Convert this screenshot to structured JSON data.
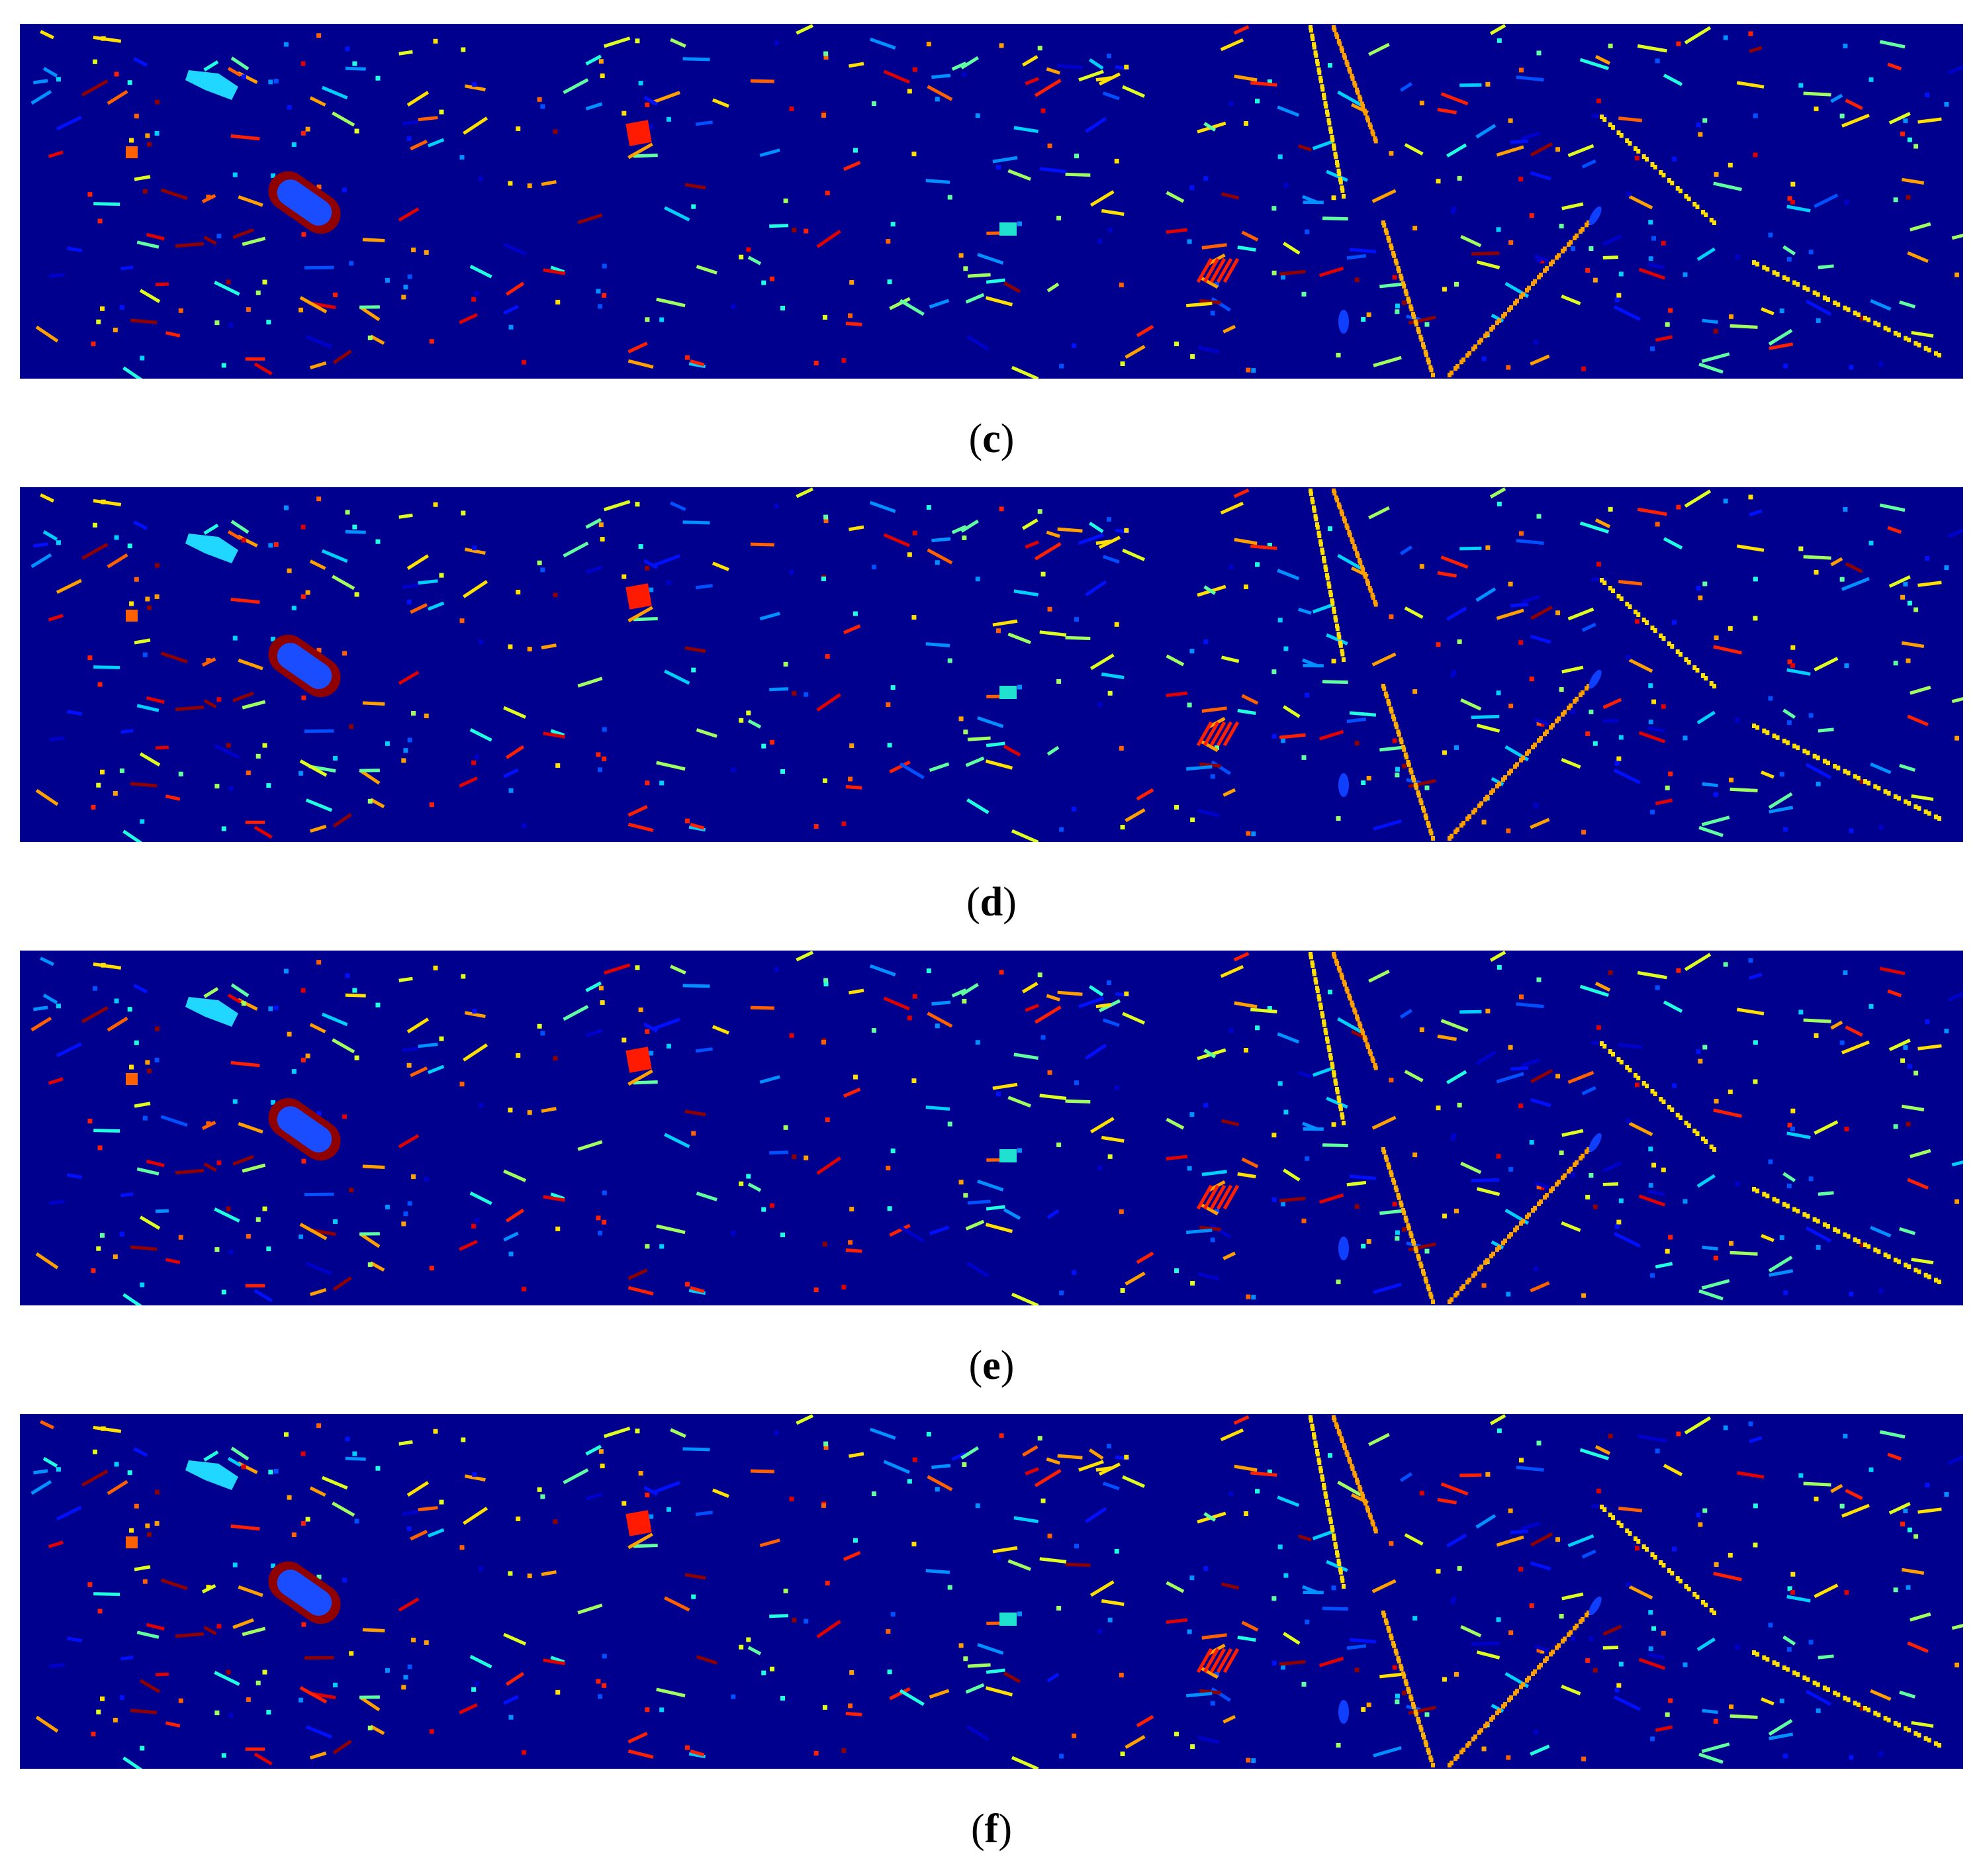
{
  "figure": {
    "panels": [
      {
        "id": "c",
        "caption_open": "(",
        "caption_letter": "c",
        "caption_close": ")"
      },
      {
        "id": "d",
        "caption_open": "(",
        "caption_letter": "d",
        "caption_close": ")"
      },
      {
        "id": "e",
        "caption_open": "(",
        "caption_letter": "e",
        "caption_close": ")"
      },
      {
        "id": "f",
        "caption_open": "(",
        "caption_letter": "f",
        "caption_close": ")"
      }
    ],
    "colors": {
      "background": "#00008f",
      "palette": [
        "#0000cd",
        "#0010ff",
        "#0050ff",
        "#0090ff",
        "#00d0ff",
        "#20ffdf",
        "#60ff9f",
        "#a0ff60",
        "#dfff20",
        "#ffe000",
        "#ffa000",
        "#ff6000",
        "#ff2000",
        "#df0000",
        "#8f0000"
      ]
    }
  }
}
